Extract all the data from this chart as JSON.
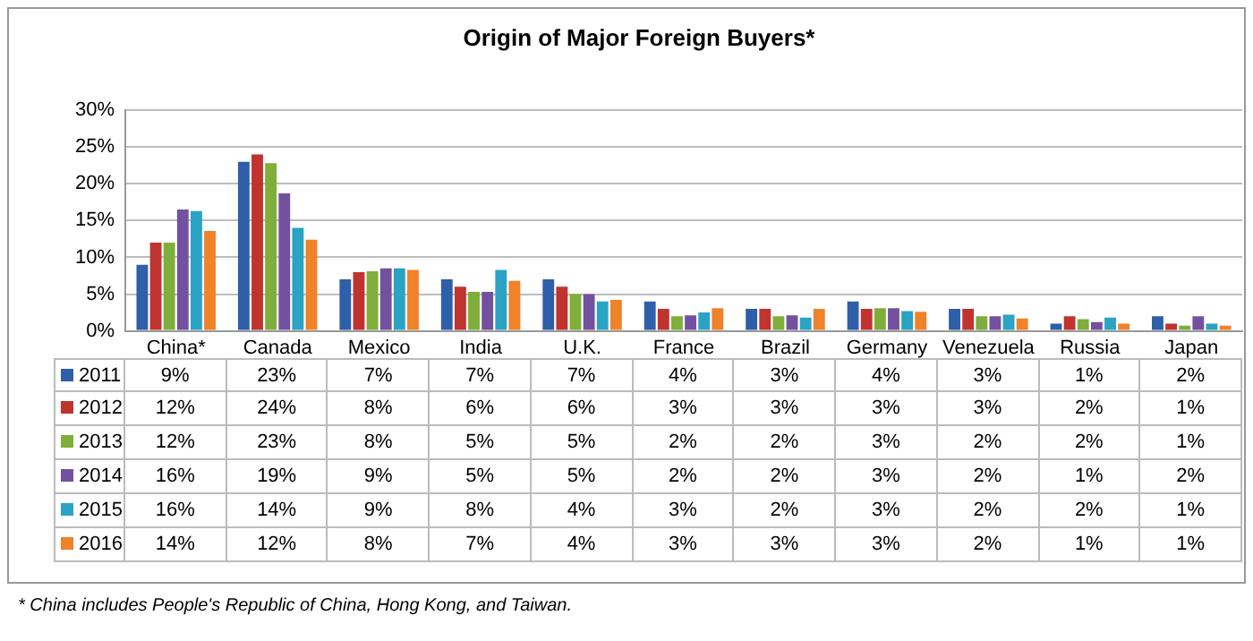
{
  "chart_data": {
    "type": "bar",
    "title": "Origin of Major Foreign Buyers*",
    "categories": [
      "China*",
      "Canada",
      "Mexico",
      "India",
      "U.K.",
      "France",
      "Brazil",
      "Germany",
      "Venezuela",
      "Russia",
      "Japan"
    ],
    "series": [
      {
        "name": "2011",
        "color": "#2e5fa8",
        "values": [
          9,
          23,
          7,
          7,
          7,
          4,
          3,
          4,
          3,
          1,
          2
        ],
        "value_labels": [
          "9%",
          "23%",
          "7%",
          "7%",
          "7%",
          "4%",
          "3%",
          "4%",
          "3%",
          "1%",
          "2%"
        ]
      },
      {
        "name": "2012",
        "color": "#c0332f",
        "values": [
          12,
          24,
          8,
          6,
          6,
          3,
          3,
          3,
          3,
          2,
          1
        ],
        "value_labels": [
          "12%",
          "24%",
          "8%",
          "6%",
          "6%",
          "3%",
          "3%",
          "3%",
          "3%",
          "2%",
          "1%"
        ]
      },
      {
        "name": "2013",
        "color": "#7fae3a",
        "values": [
          12,
          22.8,
          8.1,
          5.3,
          5,
          2,
          2,
          3.1,
          2,
          1.6,
          0.7
        ],
        "value_labels": [
          "12%",
          "23%",
          "8%",
          "5%",
          "5%",
          "2%",
          "2%",
          "3%",
          "2%",
          "2%",
          "1%"
        ]
      },
      {
        "name": "2014",
        "color": "#7351a0",
        "values": [
          16.5,
          18.7,
          8.5,
          5.3,
          5,
          2.1,
          2.1,
          3.1,
          2,
          1.2,
          2
        ],
        "value_labels": [
          "16%",
          "19%",
          "9%",
          "5%",
          "5%",
          "2%",
          "2%",
          "3%",
          "2%",
          "1%",
          "2%"
        ]
      },
      {
        "name": "2015",
        "color": "#2aa3c4",
        "values": [
          16.3,
          14,
          8.5,
          8.3,
          4,
          2.5,
          1.8,
          2.7,
          2.2,
          1.8,
          1
        ],
        "value_labels": [
          "16%",
          "14%",
          "9%",
          "8%",
          "4%",
          "3%",
          "2%",
          "3%",
          "2%",
          "2%",
          "1%"
        ]
      },
      {
        "name": "2016",
        "color": "#f0822a",
        "values": [
          13.6,
          12.4,
          8.3,
          6.8,
          4.2,
          3.1,
          3,
          2.6,
          1.7,
          1,
          0.7
        ],
        "value_labels": [
          "14%",
          "12%",
          "8%",
          "7%",
          "4%",
          "3%",
          "3%",
          "3%",
          "2%",
          "1%",
          "1%"
        ]
      }
    ],
    "ylim": [
      0,
      30
    ],
    "yticks": [
      {
        "value": 0,
        "label": "0%"
      },
      {
        "value": 5,
        "label": "5%"
      },
      {
        "value": 10,
        "label": "10%"
      },
      {
        "value": 15,
        "label": "15%"
      },
      {
        "value": 20,
        "label": "20%"
      },
      {
        "value": 25,
        "label": "25%"
      },
      {
        "value": 30,
        "label": "30%"
      }
    ],
    "grid": "y",
    "legend": "bottom left",
    "annotations": [
      "* China includes People's Republic of China, Hong Kong, and Taiwan."
    ]
  }
}
